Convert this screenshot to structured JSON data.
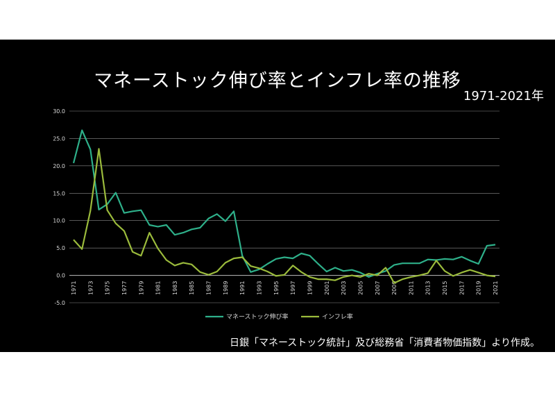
{
  "chart_data": {
    "type": "line",
    "title": "マネーストック伸び率とインフレ率の推移",
    "subtitle": "1971-2021年",
    "source": "日銀「マネーストック統計」及び総務省「消費者物価指数」より作成。",
    "ylim": [
      -5,
      30
    ],
    "yticks": [
      "30.0",
      "25.0",
      "20.0",
      "15.0",
      "10.0",
      "5.0",
      "0.0",
      "-5.0"
    ],
    "x": [
      1971,
      1972,
      1973,
      1974,
      1975,
      1976,
      1977,
      1978,
      1979,
      1980,
      1981,
      1982,
      1983,
      1984,
      1985,
      1986,
      1987,
      1988,
      1989,
      1990,
      1991,
      1992,
      1993,
      1994,
      1995,
      1996,
      1997,
      1998,
      1999,
      2000,
      2001,
      2002,
      2003,
      2004,
      2005,
      2006,
      2007,
      2008,
      2009,
      2010,
      2011,
      2012,
      2013,
      2014,
      2015,
      2016,
      2017,
      2018,
      2019,
      2020,
      2021
    ],
    "xticks": [
      "1971",
      "1973",
      "1975",
      "1977",
      "1979",
      "1981",
      "1983",
      "1985",
      "1987",
      "1989",
      "1991",
      "1993",
      "1995",
      "1997",
      "1999",
      "2001",
      "2003",
      "2005",
      "2007",
      "2009",
      "2011",
      "2013",
      "2015",
      "2017",
      "2019",
      "2021"
    ],
    "grid": true,
    "legend_position": "bottom",
    "series": [
      {
        "name": "マネーストック伸び率",
        "color": "#2eb08a",
        "values": [
          20.5,
          26.5,
          23.0,
          12.0,
          13.0,
          15.1,
          11.4,
          11.7,
          11.9,
          9.2,
          8.9,
          9.2,
          7.4,
          7.8,
          8.4,
          8.7,
          10.4,
          11.2,
          9.9,
          11.7,
          3.6,
          0.6,
          1.1,
          2.1,
          3.0,
          3.3,
          3.1,
          4.0,
          3.6,
          2.1,
          0.7,
          1.4,
          0.8,
          1.0,
          0.5,
          -0.3,
          0.3,
          0.8,
          1.9,
          2.2,
          2.2,
          2.2,
          2.9,
          2.8,
          3.0,
          2.9,
          3.4,
          2.7,
          2.1,
          5.4,
          5.6
        ]
      },
      {
        "name": "インフレ率",
        "color": "#9bbb3c",
        "values": [
          6.5,
          4.8,
          11.8,
          23.1,
          11.9,
          9.5,
          8.1,
          4.3,
          3.6,
          7.8,
          4.9,
          2.8,
          1.8,
          2.3,
          2.0,
          0.6,
          0.1,
          0.7,
          2.3,
          3.1,
          3.3,
          1.7,
          1.3,
          0.7,
          -0.1,
          0.1,
          1.8,
          0.6,
          -0.3,
          -0.7,
          -0.7,
          -0.9,
          -0.3,
          0.0,
          -0.3,
          0.3,
          0.0,
          1.4,
          -1.4,
          -0.7,
          -0.3,
          0.0,
          0.4,
          2.7,
          0.8,
          -0.1,
          0.5,
          1.0,
          0.5,
          0.0,
          -0.2
        ]
      }
    ]
  }
}
